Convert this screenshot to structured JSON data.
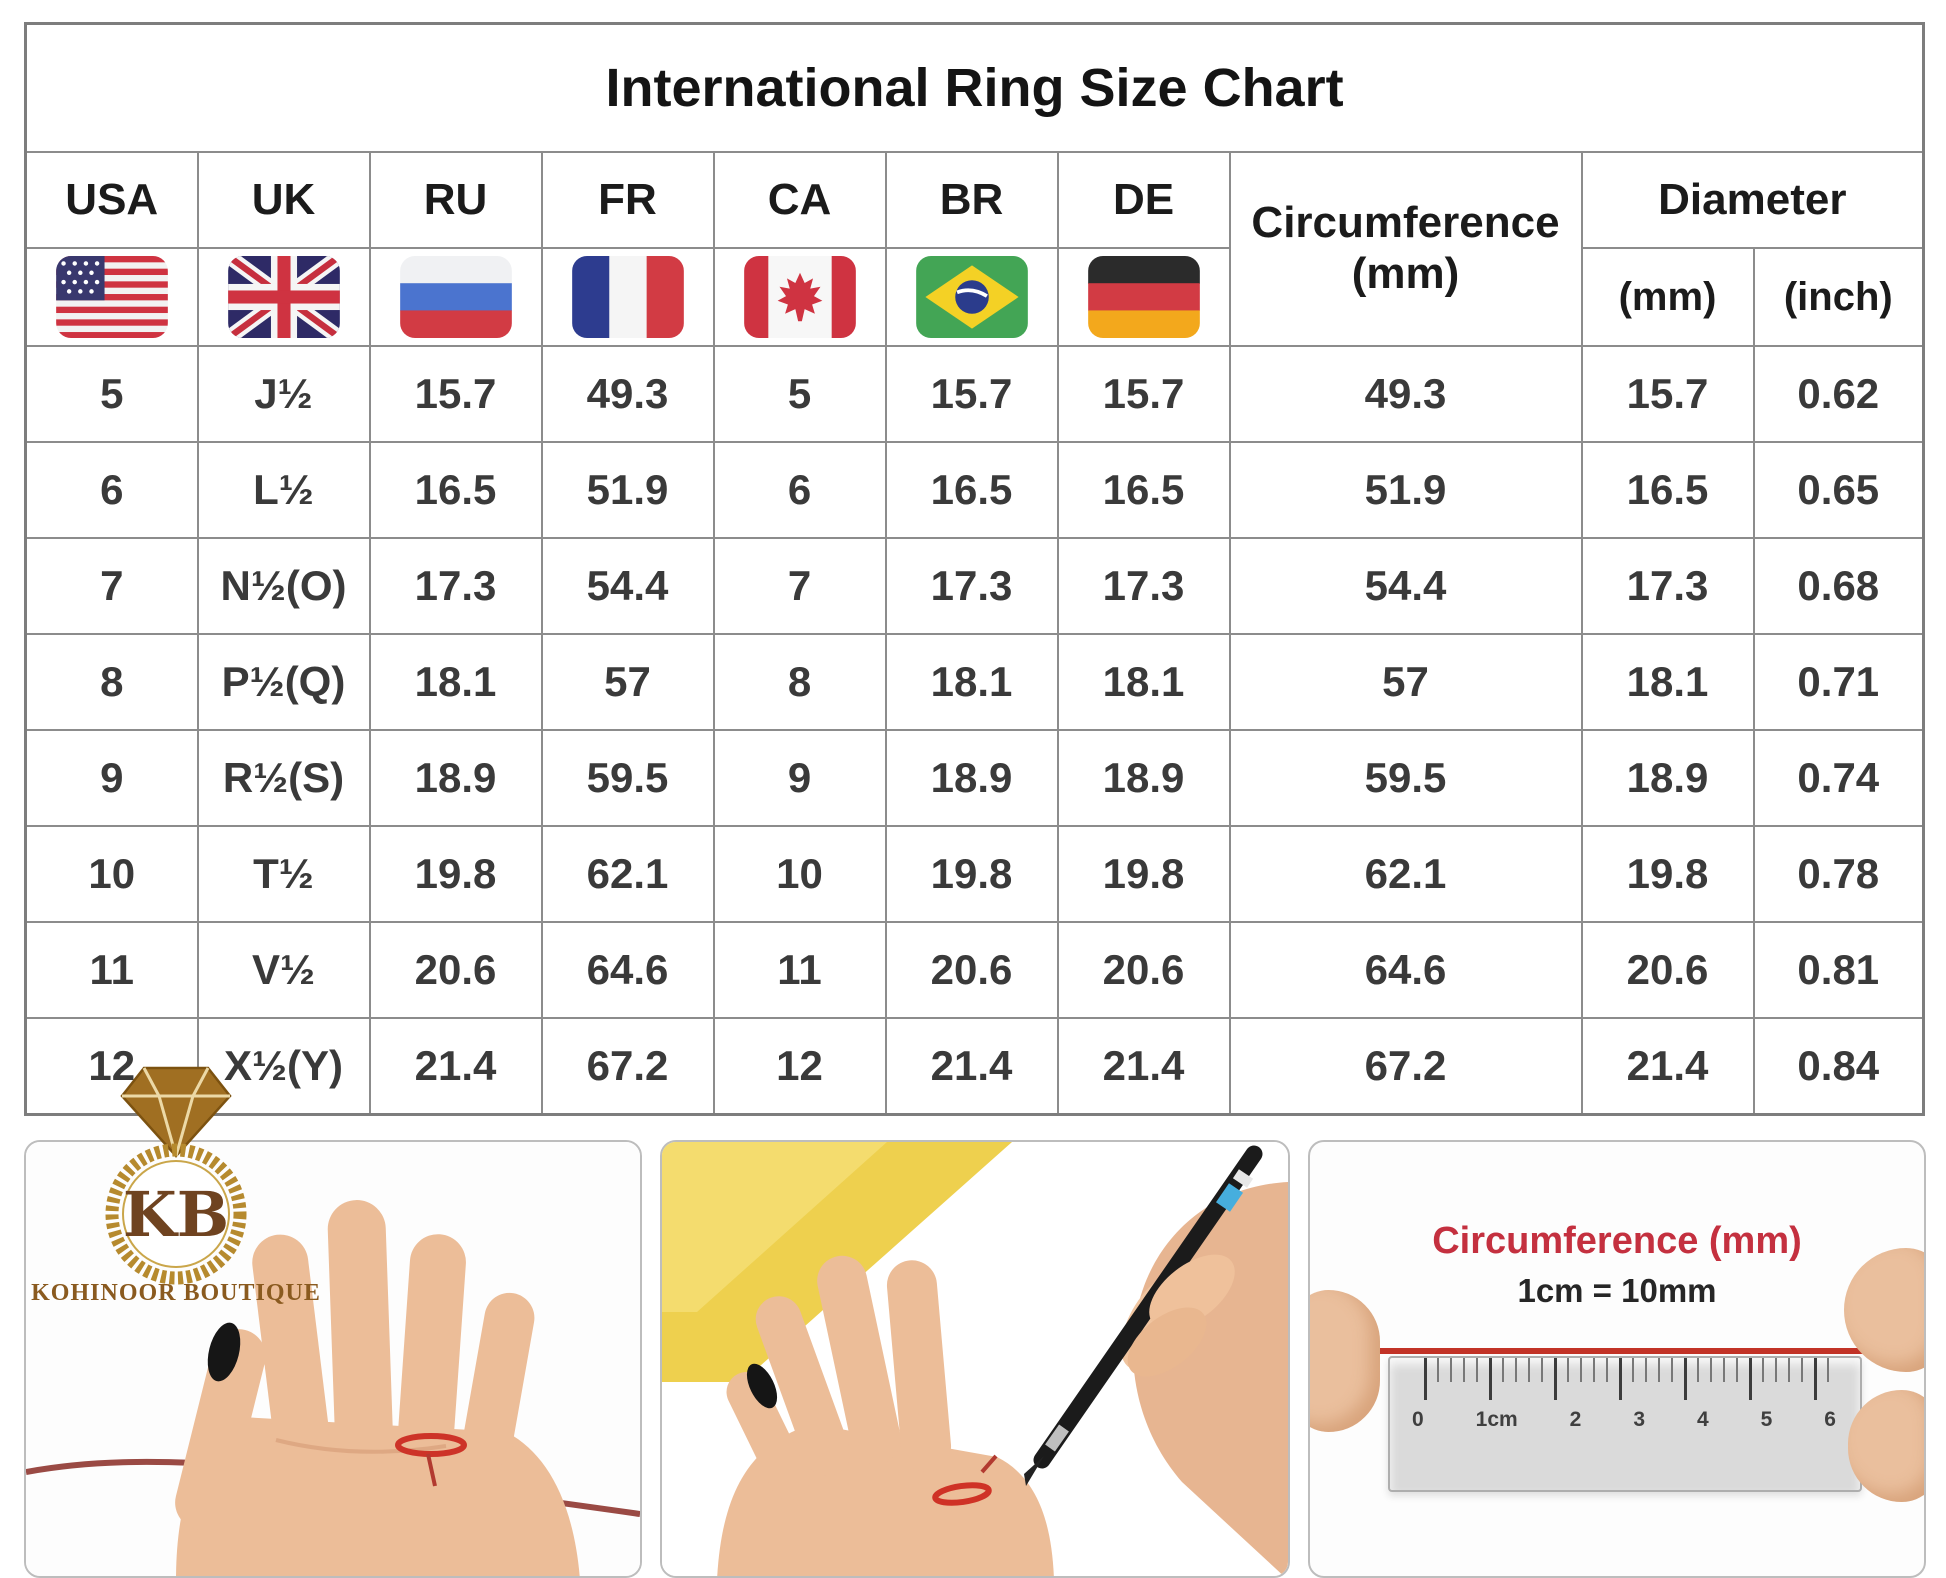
{
  "title": "International Ring Size Chart",
  "header": {
    "countries": [
      "USA",
      "UK",
      "RU",
      "FR",
      "CA",
      "BR",
      "DE"
    ],
    "circumference_label": "Circumference",
    "circumference_unit": "(mm)",
    "diameter_label": "Diameter",
    "diameter_mm": "(mm)",
    "diameter_inch": "(inch)"
  },
  "flag_icons": [
    "flag-usa-icon",
    "flag-uk-icon",
    "flag-russia-icon",
    "flag-france-icon",
    "flag-canada-icon",
    "flag-brazil-icon",
    "flag-germany-icon"
  ],
  "chart_data": {
    "type": "table",
    "title": "International Ring Size Chart",
    "columns": [
      "USA",
      "UK",
      "RU",
      "FR",
      "CA",
      "BR",
      "DE",
      "Circumference (mm)",
      "Diameter (mm)",
      "Diameter (inch)"
    ],
    "rows": [
      [
        "5",
        "J½",
        "15.7",
        "49.3",
        "5",
        "15.7",
        "15.7",
        "49.3",
        "15.7",
        "0.62"
      ],
      [
        "6",
        "L½",
        "16.5",
        "51.9",
        "6",
        "16.5",
        "16.5",
        "51.9",
        "16.5",
        "0.65"
      ],
      [
        "7",
        "N½(O)",
        "17.3",
        "54.4",
        "7",
        "17.3",
        "17.3",
        "54.4",
        "17.3",
        "0.68"
      ],
      [
        "8",
        "P½(Q)",
        "18.1",
        "57",
        "8",
        "18.1",
        "18.1",
        "57",
        "18.1",
        "0.71"
      ],
      [
        "9",
        "R½(S)",
        "18.9",
        "59.5",
        "9",
        "18.9",
        "18.9",
        "59.5",
        "18.9",
        "0.74"
      ],
      [
        "10",
        "T½",
        "19.8",
        "62.1",
        "10",
        "19.8",
        "19.8",
        "62.1",
        "19.8",
        "0.78"
      ],
      [
        "11",
        "V½",
        "20.6",
        "64.6",
        "11",
        "20.6",
        "20.6",
        "64.6",
        "20.6",
        "0.81"
      ],
      [
        "12",
        "X½(Y)",
        "21.4",
        "67.2",
        "12",
        "21.4",
        "21.4",
        "67.2",
        "21.4",
        "0.84"
      ]
    ]
  },
  "logo": {
    "monogram": "KB",
    "name": "KOHINOOR BOUTIQUE",
    "diamond_icon": "diamond-icon"
  },
  "photos": {
    "string_on_finger": {
      "icon": "hand-with-red-string-illustration"
    },
    "marking": {
      "icon": "pen-marking-string-illustration"
    },
    "ruler": {
      "heading": "Circumference (mm)",
      "subheading": "1cm = 10mm",
      "ticks": [
        "0",
        "1cm",
        "2",
        "3",
        "4",
        "5",
        "6"
      ]
    }
  },
  "colors": {
    "accent_red": "#c4303f",
    "string_red": "#c23327",
    "gold": "#b68a2e",
    "brown": "#6f4320",
    "border_gray": "#8c8c8c",
    "skin": "#ecbd98"
  }
}
